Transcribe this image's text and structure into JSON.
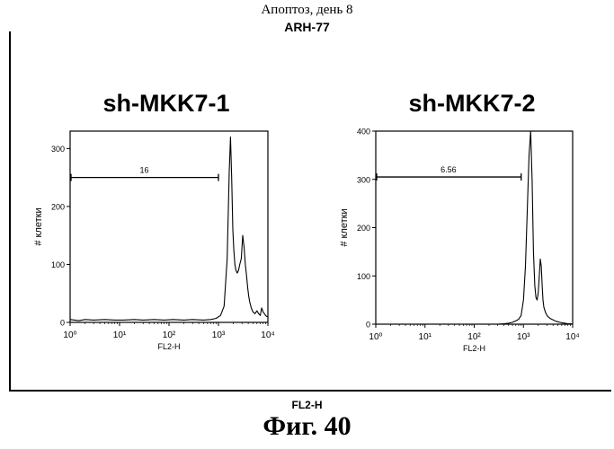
{
  "header": {
    "title": "Апоптоз, день 8",
    "sample": "ARH-77"
  },
  "footer": {
    "xlabel": "FL2-H",
    "caption": "Фиг.  40"
  },
  "chart_data": [
    {
      "type": "histogram",
      "title": "sh-MKK7-1",
      "xlabel": "FL2-H",
      "ylabel": "# клетки",
      "x_scale": "log",
      "xlim": [
        1,
        10000
      ],
      "ylim": [
        0,
        330
      ],
      "yticks": [
        0,
        100,
        200,
        300
      ],
      "xtick_labels": [
        "10⁰",
        "10¹",
        "10²",
        "10³",
        "10⁴"
      ],
      "gate": {
        "label": "16",
        "x_range": [
          1,
          1000
        ],
        "y": 250
      },
      "x": [
        1,
        1.5,
        2,
        3,
        5,
        8,
        12,
        20,
        30,
        50,
        80,
        120,
        200,
        300,
        500,
        700,
        900,
        1100,
        1300,
        1500,
        1650,
        1750,
        1850,
        1950,
        2050,
        2150,
        2250,
        2400,
        2550,
        2700,
        2900,
        3100,
        3300,
        3500,
        3700,
        3900,
        4100,
        4300,
        4600,
        5000,
        5500,
        6000,
        6500,
        7000,
        7500,
        8000,
        8500,
        9000,
        9500,
        10000
      ],
      "y": [
        5,
        3,
        5,
        4,
        5,
        4,
        4,
        5,
        4,
        5,
        4,
        5,
        4,
        5,
        4,
        5,
        7,
        12,
        28,
        110,
        260,
        320,
        250,
        160,
        125,
        100,
        90,
        85,
        90,
        100,
        110,
        150,
        130,
        100,
        80,
        60,
        45,
        35,
        25,
        18,
        15,
        20,
        15,
        12,
        25,
        18,
        15,
        12,
        10,
        10
      ]
    },
    {
      "type": "histogram",
      "title": "sh-MKK7-2",
      "xlabel": "FL2-H",
      "ylabel": "# клетки",
      "x_scale": "log",
      "xlim": [
        1,
        10000
      ],
      "ylim": [
        0,
        400
      ],
      "yticks": [
        0,
        100,
        200,
        300,
        400
      ],
      "xtick_labels": [
        "10⁰",
        "10¹",
        "10²",
        "10³",
        "10⁴"
      ],
      "gate": {
        "label": "6.56",
        "x_range": [
          1,
          900
        ],
        "y": 305
      },
      "x": [
        1,
        2,
        5,
        10,
        30,
        60,
        100,
        200,
        300,
        400,
        500,
        600,
        700,
        800,
        900,
        1000,
        1100,
        1200,
        1300,
        1400,
        1500,
        1600,
        1700,
        1800,
        1900,
        2000,
        2100,
        2200,
        2300,
        2400,
        2500,
        2600,
        2800,
        3000,
        3200,
        3500,
        3800,
        4200,
        4600,
        5000,
        5500,
        6000,
        7000,
        8000,
        9000,
        10000
      ],
      "y": [
        0,
        0,
        0,
        0,
        0,
        0,
        0,
        0,
        0,
        1,
        2,
        4,
        7,
        10,
        18,
        50,
        120,
        240,
        350,
        400,
        300,
        150,
        80,
        55,
        50,
        65,
        100,
        135,
        120,
        80,
        50,
        35,
        25,
        18,
        15,
        12,
        10,
        8,
        6,
        5,
        4,
        3,
        2,
        1,
        1,
        0
      ]
    }
  ]
}
